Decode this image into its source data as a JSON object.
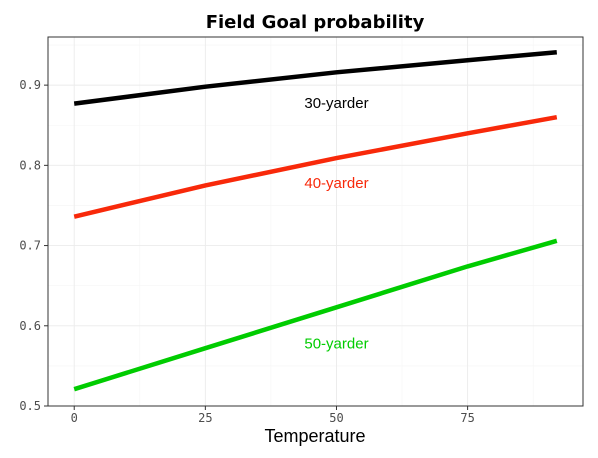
{
  "chart_data": {
    "type": "line",
    "title": "Field Goal probability",
    "xlabel": "Temperature",
    "ylabel": "",
    "xlim": [
      -5,
      97
    ],
    "ylim": [
      0.5,
      0.96
    ],
    "x_ticks": [
      0,
      25,
      50,
      75
    ],
    "x_tick_labels": [
      "0",
      "25",
      "50",
      "75"
    ],
    "y_ticks": [
      0.5,
      0.6,
      0.7,
      0.8,
      0.9
    ],
    "y_tick_labels": [
      "0.5",
      "0.6",
      "0.7",
      "0.8",
      "0.9"
    ],
    "grid": true,
    "legend": "none",
    "series": [
      {
        "name": "30-yarder",
        "color": "#000000",
        "x": [
          0,
          25,
          50,
          75,
          92
        ],
        "values": [
          0.877,
          0.898,
          0.916,
          0.931,
          0.941
        ],
        "label_at": [
          50,
          0.878
        ]
      },
      {
        "name": "40-yarder",
        "color": "#f8290a",
        "x": [
          0,
          25,
          50,
          75,
          92
        ],
        "values": [
          0.736,
          0.775,
          0.809,
          0.84,
          0.86
        ],
        "label_at": [
          50,
          0.778
        ]
      },
      {
        "name": "50-yarder",
        "color": "#00cc00",
        "x": [
          0,
          25,
          50,
          75,
          92
        ],
        "values": [
          0.521,
          0.572,
          0.623,
          0.674,
          0.706
        ],
        "label_at": [
          50,
          0.578
        ]
      }
    ]
  }
}
